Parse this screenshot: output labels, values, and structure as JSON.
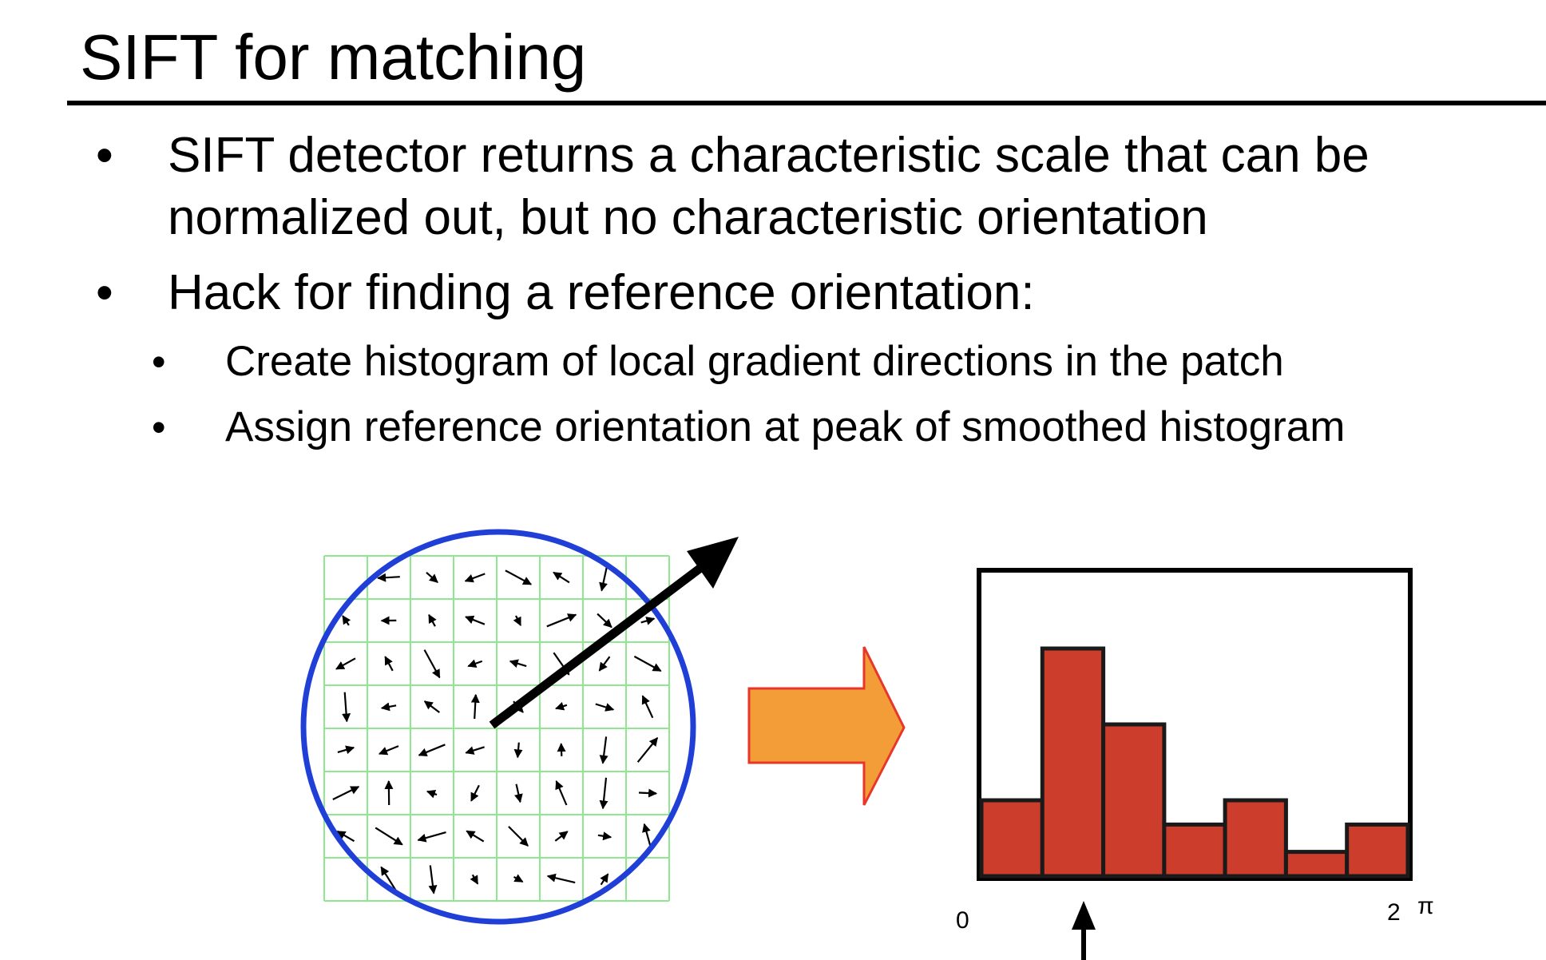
{
  "slide": {
    "title": "SIFT for matching",
    "bullets": [
      {
        "lines": [
          "SIFT detector returns a characteristic scale that can be",
          "normalized out, but no characteristic orientation"
        ]
      },
      {
        "lines": [
          "Hack for finding a reference orientation:"
        ],
        "subbullets": [
          "Create histogram of local gradient directions in the patch",
          "Assign reference orientation at peak of smoothed histogram"
        ]
      }
    ],
    "bullet_glyph": "•"
  },
  "figure": {
    "patch": {
      "grid_color": "#8fe88f",
      "circle_color": "#1f3fd6",
      "arrow_color": "#000000"
    },
    "transition_arrow": {
      "fill": "#f29d38",
      "stroke": "#e8372a"
    },
    "histogram": {
      "bar_color": "#cc3d2c",
      "x_start_label": "0",
      "x_end_label": "2",
      "x_end_symbol": "π"
    }
  },
  "chart_data": {
    "type": "bar",
    "categories": [
      "",
      "",
      "",
      "",
      "",
      "",
      ""
    ],
    "values": [
      0.25,
      0.75,
      0.5,
      0.17,
      0.25,
      0.08,
      0.17
    ],
    "title": "",
    "xlabel": "",
    "ylabel": "",
    "ylim": [
      0,
      1
    ],
    "x_range_labels": [
      "0",
      "2 π"
    ],
    "peak_index": 1,
    "bar_color": "#cc3d2c"
  }
}
